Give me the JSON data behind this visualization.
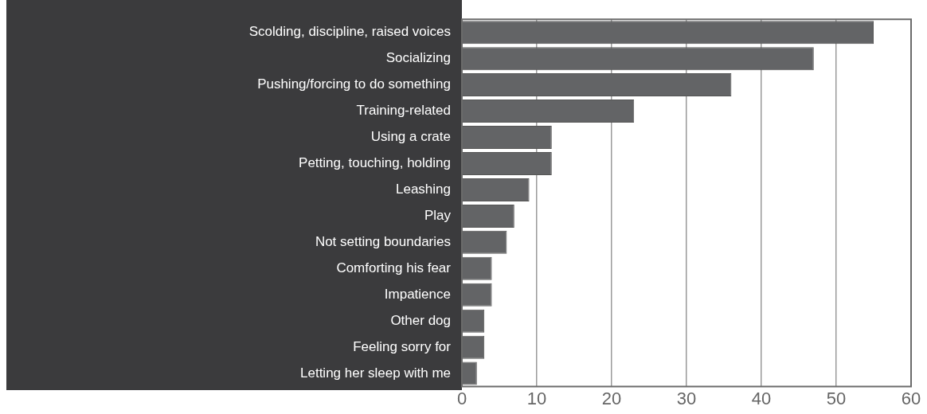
{
  "chart_data": {
    "type": "bar",
    "orientation": "horizontal",
    "categories": [
      "Scolding, discipline, raised voices",
      "Socializing",
      "Pushing/forcing to do something",
      "Training-related",
      "Using a crate",
      "Petting, touching, holding",
      "Leashing",
      "Play",
      "Not setting boundaries",
      "Comforting his fear",
      "Impatience",
      "Other dog",
      "Feeling sorry for",
      "Letting her sleep with me"
    ],
    "values": [
      55,
      47,
      36,
      23,
      12,
      12,
      9,
      7,
      6,
      4,
      4,
      3,
      3,
      2
    ],
    "color": "#636466",
    "xlim": [
      0,
      60
    ],
    "xticks": [
      0,
      10,
      20,
      30,
      40,
      50,
      60
    ],
    "grid": "x",
    "legend": false
  }
}
